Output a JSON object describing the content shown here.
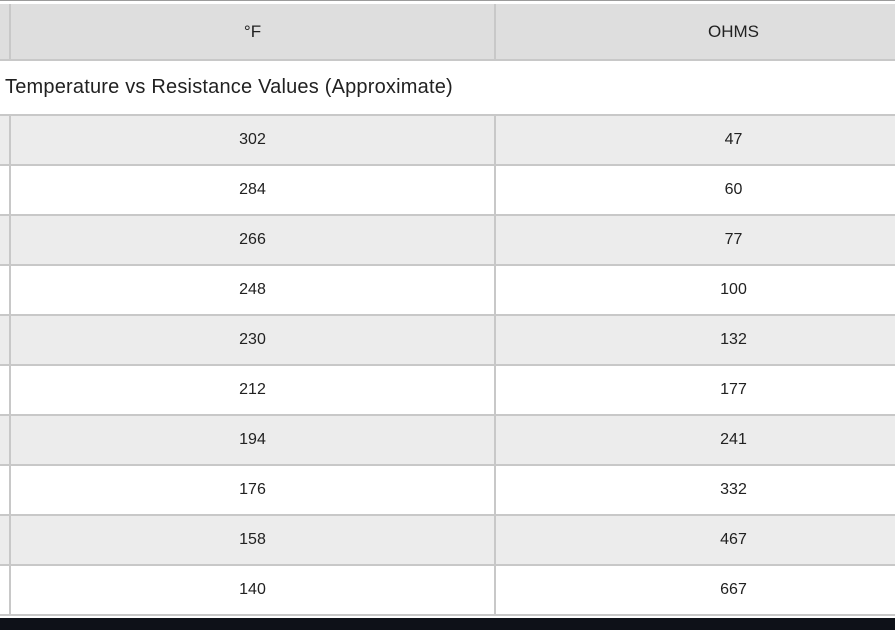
{
  "table": {
    "caption": "Temperature vs Resistance Values (Approximate)",
    "columns": [
      {
        "label": "°F"
      },
      {
        "label": "OHMS"
      }
    ],
    "rows": [
      {
        "f": "302",
        "ohms": "47"
      },
      {
        "f": "284",
        "ohms": "60"
      },
      {
        "f": "266",
        "ohms": "77"
      },
      {
        "f": "248",
        "ohms": "100"
      },
      {
        "f": "230",
        "ohms": "132"
      },
      {
        "f": "212",
        "ohms": "177"
      },
      {
        "f": "194",
        "ohms": "241"
      },
      {
        "f": "176",
        "ohms": "332"
      },
      {
        "f": "158",
        "ohms": "467"
      },
      {
        "f": "140",
        "ohms": "667"
      }
    ]
  },
  "colors": {
    "header_bg": "#dedede",
    "row_bg": "#ffffff",
    "row_alt_bg": "#ececec",
    "border": "#c8c8c8",
    "text": "#212121",
    "top_line": "#9b9b9b",
    "bottom_bar": "#0e1118"
  },
  "chart_data": {
    "type": "table",
    "title": "Temperature vs Resistance Values (Approximate)",
    "columns": [
      "°F",
      "OHMS"
    ],
    "rows": [
      [
        302,
        47
      ],
      [
        284,
        60
      ],
      [
        266,
        77
      ],
      [
        248,
        100
      ],
      [
        230,
        132
      ],
      [
        212,
        177
      ],
      [
        194,
        241
      ],
      [
        176,
        332
      ],
      [
        158,
        467
      ],
      [
        140,
        667
      ]
    ],
    "notes": "Resistance in ohms decreases as temperature in Fahrenheit increases; alternating gray/white striped rows"
  }
}
